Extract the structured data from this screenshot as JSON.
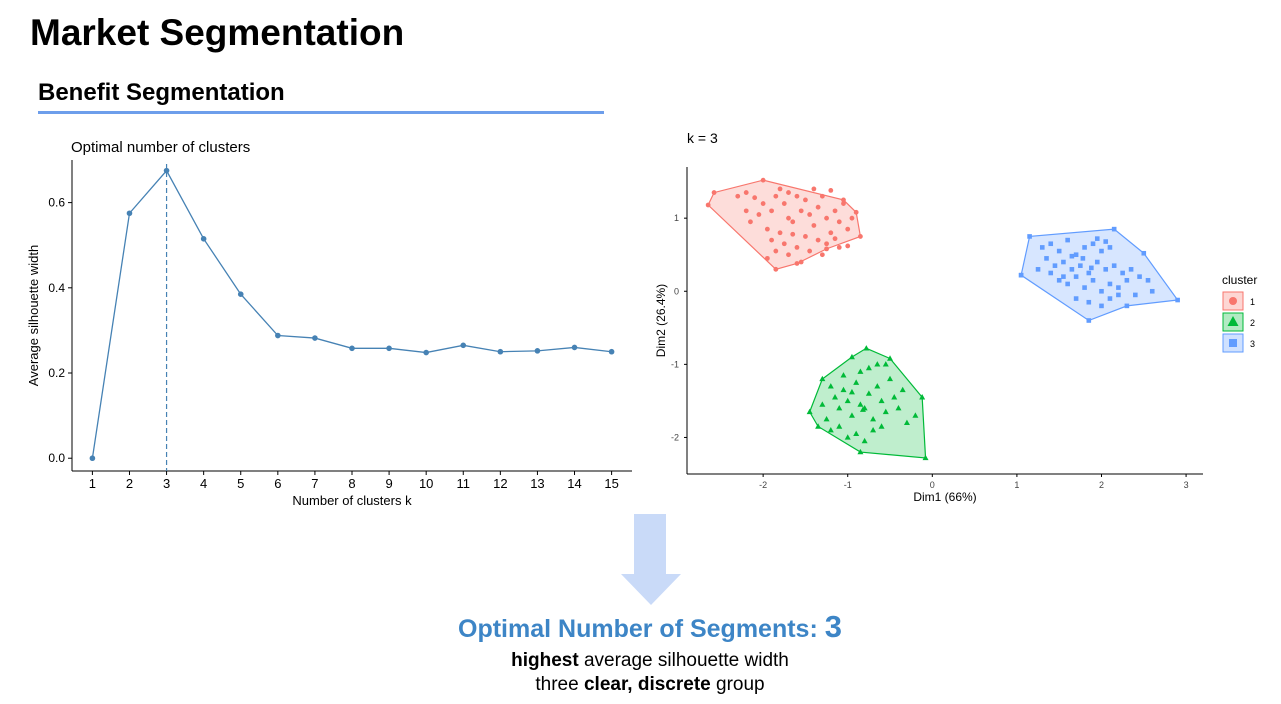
{
  "page": {
    "title": "Market Segmentation",
    "section_title": "Benefit Segmentation"
  },
  "summary": {
    "title_label": "Optimal Number of Segments:",
    "title_value": "3",
    "line1_bold": "highest",
    "line1_rest": "average silhouette width",
    "line2_pre": "three",
    "line2_bold": "clear, discrete",
    "line2_post": "group"
  },
  "colors": {
    "accent_rule": "#6d9eeb",
    "summary_text": "#3d85c6",
    "arrow": "#c9daf8",
    "silhouette_line": "#4682b4",
    "cluster_1": "#f8766d",
    "cluster_2": "#00ba38",
    "cluster_3": "#619cff"
  },
  "chart_data": [
    {
      "type": "line",
      "title": "Optimal number of clusters",
      "xlabel": "Number of clusters k",
      "ylabel": "Average silhouette width",
      "x": [
        1,
        2,
        3,
        4,
        5,
        6,
        7,
        8,
        9,
        10,
        11,
        12,
        13,
        14,
        15
      ],
      "values": [
        0.0,
        0.575,
        0.675,
        0.515,
        0.385,
        0.288,
        0.282,
        0.258,
        0.258,
        0.248,
        0.265,
        0.25,
        0.252,
        0.26,
        0.25
      ],
      "xticks": [
        "1",
        "2",
        "3",
        "4",
        "5",
        "6",
        "7",
        "8",
        "9",
        "10",
        "11",
        "12",
        "13",
        "14",
        "15"
      ],
      "yticks": [
        "0.0",
        "0.2",
        "0.4",
        "0.6"
      ],
      "ylim": [
        -0.03,
        0.7
      ],
      "optimal_k": 3,
      "grid": false
    },
    {
      "type": "scatter",
      "title": "k = 3",
      "xlabel": "Dim1 (66%)",
      "ylabel": "Dim2 (26.4%)",
      "xlim": [
        -2.9,
        3.2
      ],
      "ylim": [
        -2.5,
        1.7
      ],
      "xticks": [
        "-2",
        "-1",
        "0",
        "1",
        "2",
        "3"
      ],
      "yticks": [
        "-2",
        "-1",
        "0",
        "1"
      ],
      "legend": {
        "title": "cluster",
        "position": "right"
      },
      "series": [
        {
          "name": "1",
          "marker": "circle",
          "hull": [
            [
              -2.65,
              1.18
            ],
            [
              -2.58,
              1.35
            ],
            [
              -2.0,
              1.52
            ],
            [
              -1.05,
              1.25
            ],
            [
              -0.9,
              1.08
            ],
            [
              -0.85,
              0.75
            ],
            [
              -1.25,
              0.58
            ],
            [
              -1.6,
              0.38
            ],
            [
              -1.85,
              0.3
            ]
          ],
          "points": [
            [
              -2.3,
              1.3
            ],
            [
              -2.2,
              1.35
            ],
            [
              -2.1,
              1.28
            ],
            [
              -2.0,
              1.2
            ],
            [
              -1.9,
              1.1
            ],
            [
              -1.85,
              1.3
            ],
            [
              -1.8,
              1.4
            ],
            [
              -1.75,
              1.2
            ],
            [
              -1.7,
              1.0
            ],
            [
              -1.65,
              0.95
            ],
            [
              -1.6,
              1.3
            ],
            [
              -1.55,
              1.1
            ],
            [
              -1.5,
              1.25
            ],
            [
              -1.45,
              1.05
            ],
            [
              -1.4,
              0.9
            ],
            [
              -1.35,
              1.15
            ],
            [
              -1.3,
              1.3
            ],
            [
              -1.25,
              1.0
            ],
            [
              -1.2,
              0.8
            ],
            [
              -1.15,
              1.1
            ],
            [
              -1.1,
              0.95
            ],
            [
              -1.05,
              1.2
            ],
            [
              -1.0,
              0.85
            ],
            [
              -0.95,
              1.0
            ],
            [
              -2.05,
              1.05
            ],
            [
              -1.95,
              0.85
            ],
            [
              -1.9,
              0.7
            ],
            [
              -1.85,
              0.55
            ],
            [
              -1.8,
              0.8
            ],
            [
              -1.75,
              0.65
            ],
            [
              -1.7,
              0.5
            ],
            [
              -1.6,
              0.6
            ],
            [
              -1.5,
              0.75
            ],
            [
              -1.45,
              0.55
            ],
            [
              -1.35,
              0.7
            ],
            [
              -1.3,
              0.5
            ],
            [
              -1.25,
              0.65
            ],
            [
              -1.15,
              0.72
            ],
            [
              -1.0,
              0.62
            ],
            [
              -2.2,
              1.1
            ],
            [
              -1.95,
              0.45
            ],
            [
              -1.55,
              0.4
            ],
            [
              -1.7,
              1.35
            ],
            [
              -1.4,
              1.4
            ],
            [
              -1.2,
              1.38
            ],
            [
              -2.15,
              0.95
            ],
            [
              -1.65,
              0.78
            ],
            [
              -1.1,
              0.6
            ]
          ]
        },
        {
          "name": "2",
          "marker": "triangle",
          "hull": [
            [
              -1.45,
              -1.65
            ],
            [
              -1.35,
              -1.85
            ],
            [
              -0.85,
              -2.2
            ],
            [
              -0.08,
              -2.28
            ],
            [
              -0.12,
              -1.45
            ],
            [
              -0.5,
              -0.92
            ],
            [
              -0.78,
              -0.78
            ],
            [
              -0.95,
              -0.9
            ],
            [
              -1.3,
              -1.2
            ]
          ],
          "points": [
            [
              -1.2,
              -1.3
            ],
            [
              -1.15,
              -1.45
            ],
            [
              -1.1,
              -1.6
            ],
            [
              -1.05,
              -1.35
            ],
            [
              -1.0,
              -1.5
            ],
            [
              -0.95,
              -1.7
            ],
            [
              -0.9,
              -1.25
            ],
            [
              -0.85,
              -1.55
            ],
            [
              -0.8,
              -1.6
            ],
            [
              -0.75,
              -1.4
            ],
            [
              -0.7,
              -1.75
            ],
            [
              -0.65,
              -1.3
            ],
            [
              -0.6,
              -1.5
            ],
            [
              -0.55,
              -1.65
            ],
            [
              -0.5,
              -1.2
            ],
            [
              -0.45,
              -1.45
            ],
            [
              -0.4,
              -1.6
            ],
            [
              -0.35,
              -1.35
            ],
            [
              -1.3,
              -1.55
            ],
            [
              -1.25,
              -1.75
            ],
            [
              -1.2,
              -1.9
            ],
            [
              -1.1,
              -1.85
            ],
            [
              -1.0,
              -2.0
            ],
            [
              -0.9,
              -1.95
            ],
            [
              -0.8,
              -2.05
            ],
            [
              -0.7,
              -1.9
            ],
            [
              -0.6,
              -1.85
            ],
            [
              -0.75,
              -1.05
            ],
            [
              -0.65,
              -1.0
            ],
            [
              -0.85,
              -1.1
            ],
            [
              -0.55,
              -1.0
            ],
            [
              -0.3,
              -1.8
            ],
            [
              -0.2,
              -1.7
            ],
            [
              -1.05,
              -1.15
            ],
            [
              -0.95,
              -1.38
            ],
            [
              -0.82,
              -1.62
            ]
          ]
        },
        {
          "name": "3",
          "marker": "square",
          "hull": [
            [
              1.05,
              0.22
            ],
            [
              1.15,
              0.75
            ],
            [
              2.15,
              0.85
            ],
            [
              2.5,
              0.52
            ],
            [
              2.9,
              -0.12
            ],
            [
              2.3,
              -0.2
            ],
            [
              1.85,
              -0.4
            ],
            [
              1.05,
              0.22
            ]
          ],
          "points": [
            [
              1.3,
              0.6
            ],
            [
              1.4,
              0.65
            ],
            [
              1.5,
              0.55
            ],
            [
              1.6,
              0.7
            ],
            [
              1.7,
              0.5
            ],
            [
              1.8,
              0.6
            ],
            [
              1.9,
              0.65
            ],
            [
              2.0,
              0.55
            ],
            [
              2.1,
              0.6
            ],
            [
              1.35,
              0.45
            ],
            [
              1.45,
              0.35
            ],
            [
              1.55,
              0.4
            ],
            [
              1.65,
              0.3
            ],
            [
              1.75,
              0.35
            ],
            [
              1.85,
              0.25
            ],
            [
              1.95,
              0.4
            ],
            [
              2.05,
              0.3
            ],
            [
              2.15,
              0.35
            ],
            [
              2.25,
              0.25
            ],
            [
              2.35,
              0.3
            ],
            [
              2.45,
              0.2
            ],
            [
              1.25,
              0.3
            ],
            [
              1.5,
              0.15
            ],
            [
              1.6,
              0.1
            ],
            [
              1.7,
              0.2
            ],
            [
              1.8,
              0.05
            ],
            [
              1.9,
              0.15
            ],
            [
              2.0,
              0.0
            ],
            [
              2.1,
              0.1
            ],
            [
              2.2,
              0.05
            ],
            [
              2.3,
              0.15
            ],
            [
              2.4,
              -0.05
            ],
            [
              1.7,
              -0.1
            ],
            [
              1.85,
              -0.15
            ],
            [
              2.0,
              -0.2
            ],
            [
              2.1,
              -0.1
            ],
            [
              2.2,
              -0.05
            ],
            [
              1.4,
              0.25
            ],
            [
              1.55,
              0.2
            ],
            [
              1.95,
              0.72
            ],
            [
              2.05,
              0.68
            ],
            [
              1.78,
              0.45
            ],
            [
              1.88,
              0.32
            ],
            [
              2.55,
              0.15
            ],
            [
              2.6,
              0.0
            ],
            [
              1.65,
              0.48
            ]
          ]
        }
      ]
    }
  ]
}
